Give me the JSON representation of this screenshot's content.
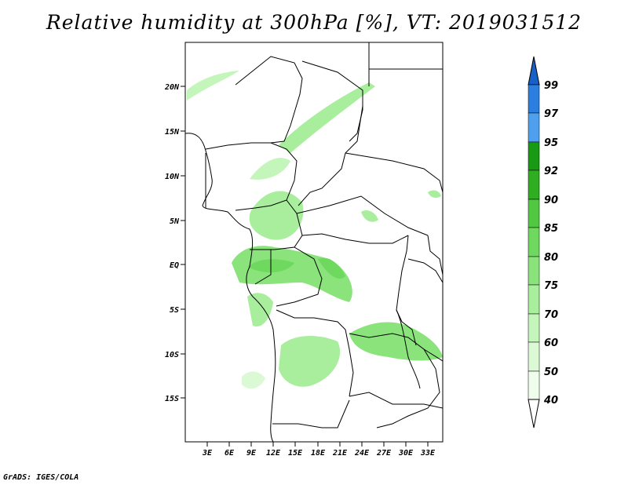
{
  "title": "Relative humidity at 300hPa [%], VT: 2019031512",
  "footer": "GrADS: IGES/COLA",
  "map": {
    "lat_ticks": [
      "20N",
      "15N",
      "10N",
      "5N",
      "EQ",
      "5S",
      "10S",
      "15S"
    ],
    "lon_ticks": [
      "3E",
      "6E",
      "9E",
      "12E",
      "15E",
      "18E",
      "21E",
      "24E",
      "27E",
      "30E",
      "33E"
    ]
  },
  "colorbar": {
    "levels": [
      "40",
      "50",
      "60",
      "70",
      "75",
      "80",
      "85",
      "90",
      "92",
      "95",
      "97",
      "99"
    ],
    "colors": {
      "40_50": "#effdec",
      "50_60": "#dbf9d4",
      "60_70": "#c4f5bb",
      "70_75": "#a8ee9c",
      "75_80": "#8be37c",
      "80_85": "#6fd85f",
      "85_90": "#52c842",
      "90_92": "#2fae22",
      "92_95": "#199a14",
      "95_97": "#4ea0ef",
      "97_99": "#2b7fe0",
      "99_up": "#1760c8"
    }
  }
}
